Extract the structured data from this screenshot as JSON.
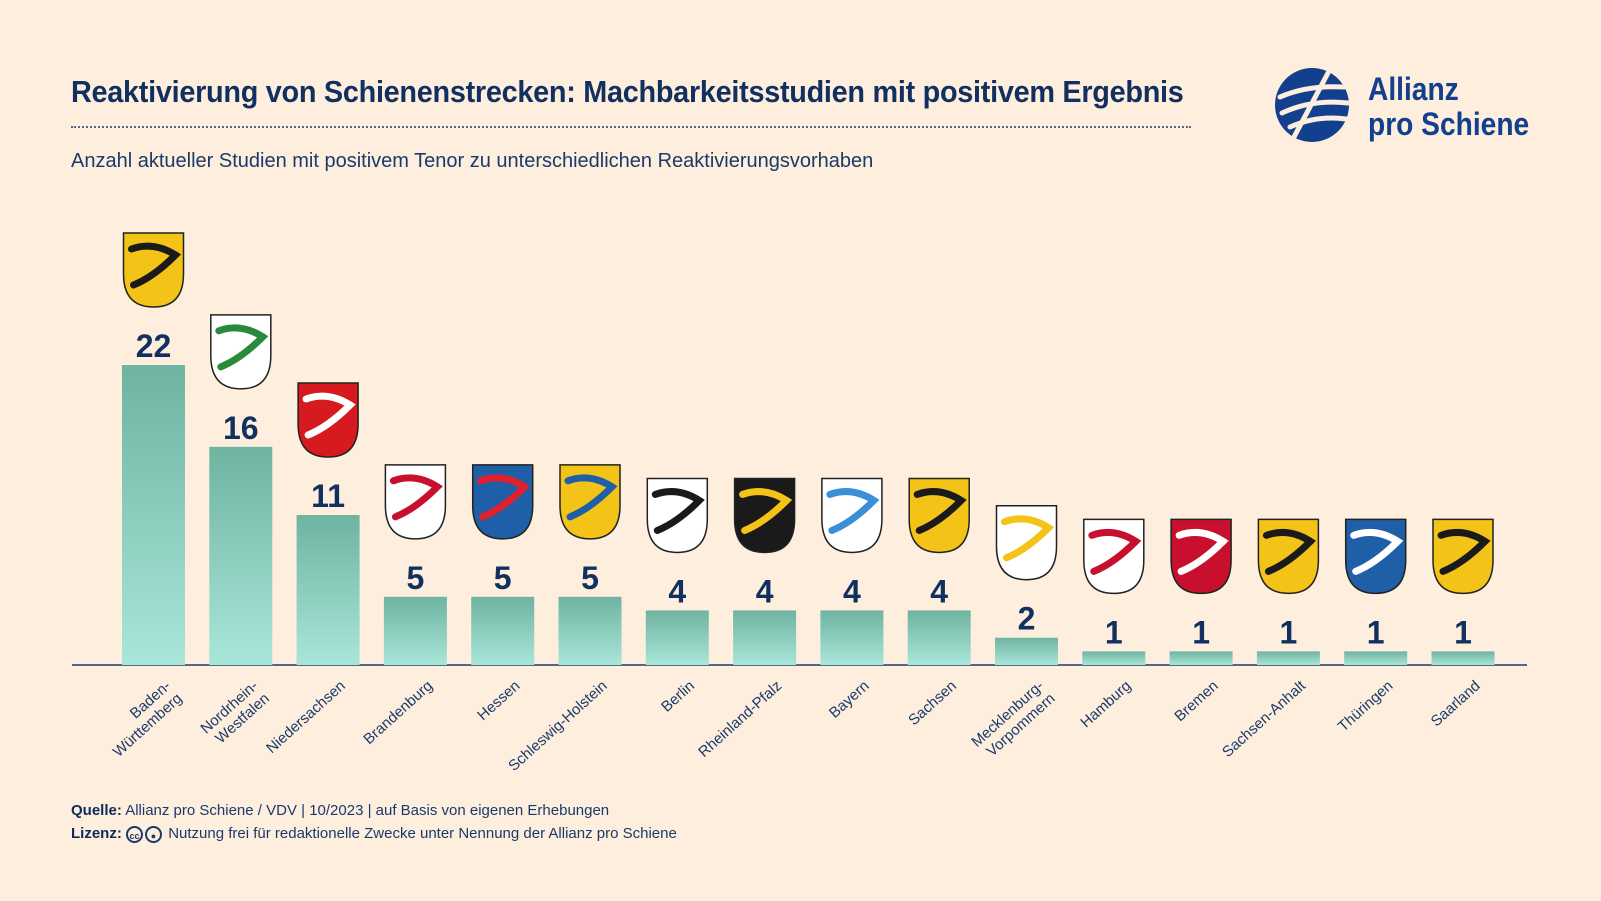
{
  "header": {
    "title": "Reaktivierung von Schienenstrecken: Machbarkeitsstudien mit positivem Ergebnis",
    "subtitle": "Anzahl aktueller Studien mit positivem Tenor zu unterschiedlichen Reaktivierungsvorhaben"
  },
  "logo": {
    "line1": "Allianz",
    "line2": "pro Schiene"
  },
  "footer": {
    "source_label": "Quelle:",
    "source_text": "Allianz pro Schiene / VDV | 10/2023 | auf Basis von eigenen Erhebungen",
    "license_label": "Lizenz:",
    "license_icons": [
      "cc-icon",
      "by-icon"
    ],
    "license_text": "Nutzung frei für redaktionelle Zwecke unter Nennung der Allianz pro Schiene"
  },
  "colors": {
    "background": "#fdeedd",
    "title": "#11305f",
    "bar_top": "#6fb3a1",
    "bar_bottom": "#a9e6d9",
    "logo": "#123f8e"
  },
  "chart_data": {
    "type": "bar",
    "categories": [
      "Baden-\nWürttemberg",
      "Nordrhein-\nWestfalen",
      "Niedersachsen",
      "Brandenburg",
      "Hessen",
      "Schleswig-Holstein",
      "Berlin",
      "Rheinland-Pfalz",
      "Bayern",
      "Sachsen",
      "Mecklenburg-\nVorpommern",
      "Hamburg",
      "Bremen",
      "Sachsen-Anhalt",
      "Thüringen",
      "Saarland"
    ],
    "values": [
      22,
      16,
      11,
      5,
      5,
      5,
      4,
      4,
      4,
      4,
      2,
      1,
      1,
      1,
      1,
      1
    ],
    "icons": [
      "coat-of-arms-baden-wuerttemberg",
      "coat-of-arms-nordrhein-westfalen",
      "coat-of-arms-niedersachsen",
      "coat-of-arms-brandenburg",
      "coat-of-arms-hessen",
      "coat-of-arms-schleswig-holstein",
      "coat-of-arms-berlin",
      "coat-of-arms-rheinland-pfalz",
      "coat-of-arms-bayern",
      "coat-of-arms-sachsen",
      "coat-of-arms-mecklenburg-vorpommern",
      "coat-of-arms-hamburg",
      "coat-of-arms-bremen",
      "coat-of-arms-sachsen-anhalt",
      "coat-of-arms-thueringen",
      "coat-of-arms-saarland"
    ],
    "ylim": [
      0,
      22
    ],
    "grid": false,
    "legend": "none"
  }
}
